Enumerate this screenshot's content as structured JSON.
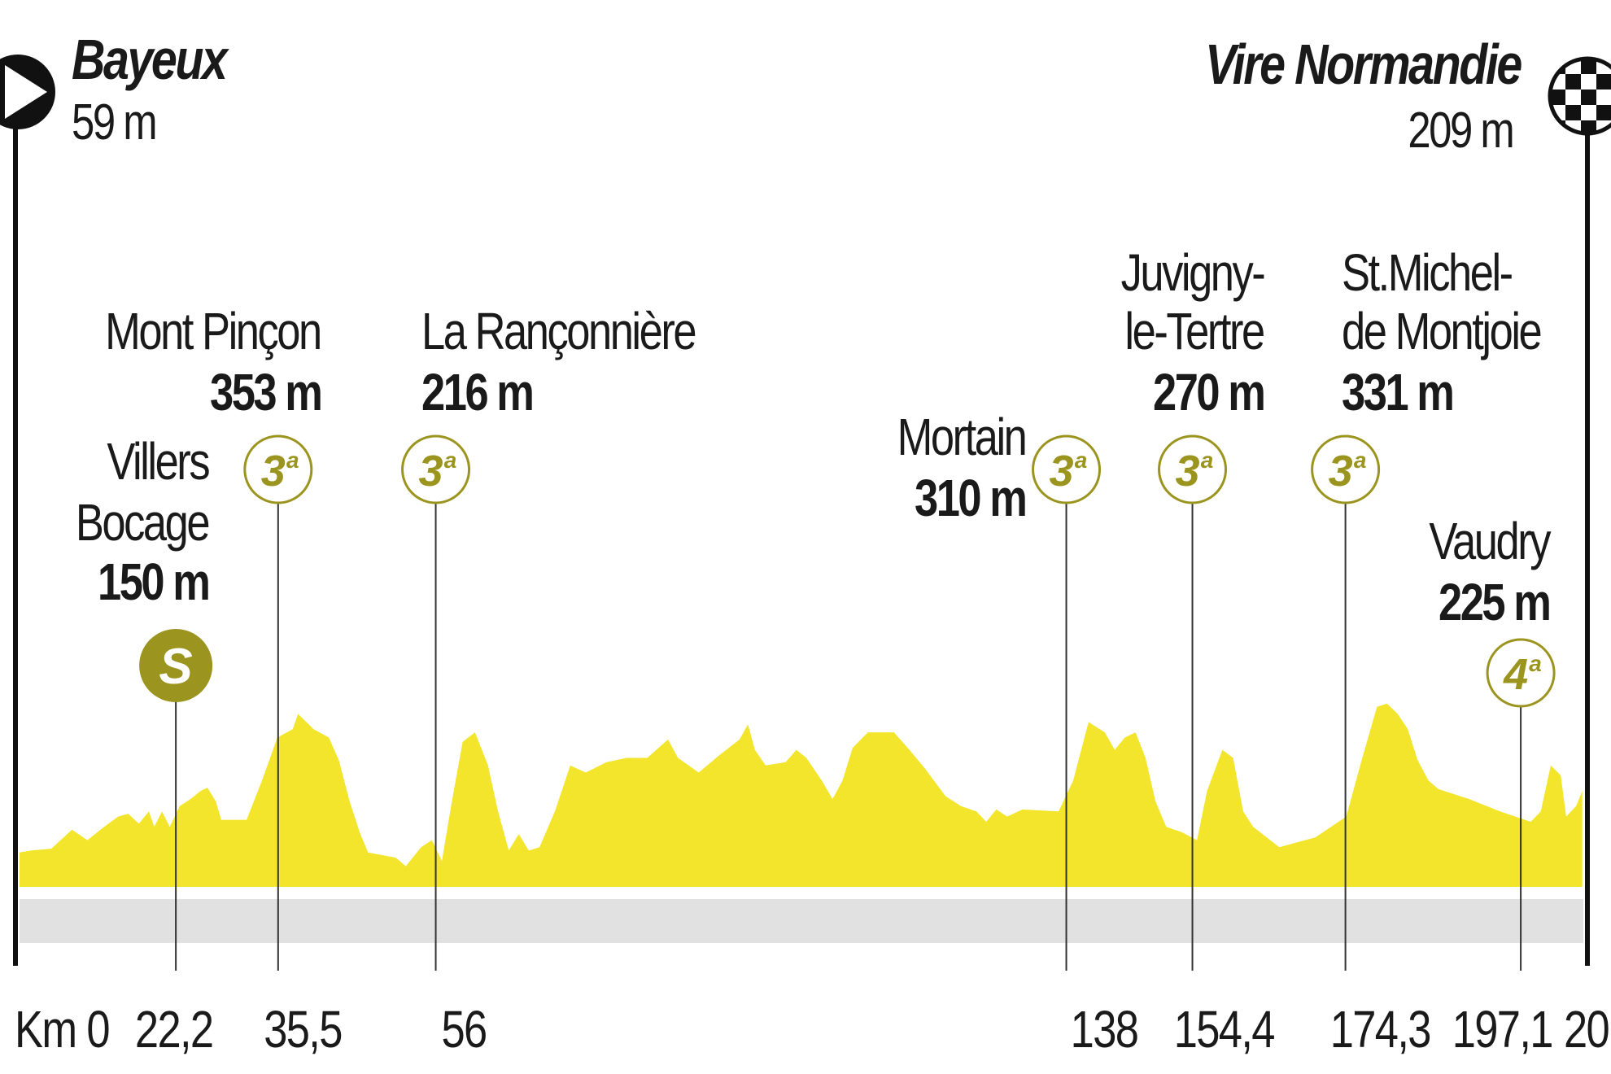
{
  "start": {
    "name": "Bayeux",
    "altitude": "59 m",
    "icon": "start-flag-icon"
  },
  "finish": {
    "name": "Vire Normandie",
    "altitude": "209 m",
    "icon": "checkered-flag-icon"
  },
  "climbs": [
    {
      "name": "Mont Pinçon",
      "altitude": "353 m",
      "category": "3",
      "sup": "a",
      "km": 35.5,
      "km_label": "35,5"
    },
    {
      "name": "La Rançonnière",
      "altitude": "216 m",
      "category": "3",
      "sup": "a",
      "km": 56,
      "km_label": "56"
    },
    {
      "name": "Mortain",
      "altitude": "310 m",
      "category": "3",
      "sup": "a",
      "km": 138,
      "km_label": "138"
    },
    {
      "name_line1": "Juvigny-",
      "name_line2": "le-Tertre",
      "altitude": "270 m",
      "category": "3",
      "sup": "a",
      "km": 154.4,
      "km_label": "154,4"
    },
    {
      "name_line1": "St.Michel-",
      "name_line2": "de Montjoie",
      "altitude": "331 m",
      "category": "3",
      "sup": "a",
      "km": 174.3,
      "km_label": "174,3"
    },
    {
      "name": "Vaudry",
      "altitude": "225 m",
      "category": "4",
      "sup": "a",
      "km": 197.1,
      "km_label": "197,1"
    }
  ],
  "sprint": {
    "name_line1": "Villers",
    "name_line2": "Bocage",
    "altitude": "150 m",
    "symbol": "S",
    "km": 22.2,
    "km_label": "22,2"
  },
  "km_axis": {
    "start_label": "Km 0",
    "end_label_partial": "20"
  },
  "colors": {
    "profile": "#f3e52b",
    "marker": "#9b951f",
    "band": "#e1e1e1"
  },
  "chart_data": {
    "type": "area",
    "xlabel": "Km",
    "ylabel": "",
    "x_unit": "km",
    "y_unit": "m",
    "grid": false,
    "points": [
      [
        0,
        59
      ],
      [
        3.3,
        63
      ],
      [
        6,
        67
      ],
      [
        8.7,
        107
      ],
      [
        10.7,
        85
      ],
      [
        12.7,
        111
      ],
      [
        14.7,
        135
      ],
      [
        16,
        141
      ],
      [
        17.4,
        120
      ],
      [
        18.7,
        146
      ],
      [
        19.4,
        113
      ],
      [
        20.4,
        146
      ],
      [
        21.4,
        113
      ],
      [
        22.7,
        157
      ],
      [
        24.1,
        172
      ],
      [
        25.4,
        189
      ],
      [
        26.3,
        196
      ],
      [
        27.4,
        167
      ],
      [
        28.1,
        128
      ],
      [
        31.4,
        128
      ],
      [
        33.4,
        211
      ],
      [
        35.4,
        302
      ],
      [
        37.4,
        320
      ],
      [
        38.1,
        352
      ],
      [
        40.1,
        320
      ],
      [
        42.1,
        302
      ],
      [
        43.4,
        254
      ],
      [
        44.8,
        167
      ],
      [
        46.1,
        102
      ],
      [
        47.2,
        59
      ],
      [
        50.8,
        48
      ],
      [
        52.1,
        30
      ],
      [
        54.1,
        70
      ],
      [
        55.5,
        85
      ],
      [
        56.8,
        41
      ],
      [
        58.1,
        167
      ],
      [
        59.5,
        293
      ],
      [
        61.1,
        313
      ],
      [
        62.8,
        243
      ],
      [
        64.1,
        146
      ],
      [
        65.5,
        63
      ],
      [
        66.8,
        98
      ],
      [
        68.1,
        63
      ],
      [
        69.5,
        70
      ],
      [
        71.5,
        146
      ],
      [
        73.5,
        243
      ],
      [
        75.5,
        228
      ],
      [
        78.2,
        250
      ],
      [
        80.8,
        259
      ],
      [
        83.5,
        259
      ],
      [
        86.2,
        298
      ],
      [
        87.5,
        259
      ],
      [
        90.2,
        228
      ],
      [
        92.9,
        265
      ],
      [
        95.5,
        298
      ],
      [
        96.6,
        330
      ],
      [
        97.5,
        276
      ],
      [
        98.9,
        243
      ],
      [
        101.5,
        250
      ],
      [
        102.9,
        276
      ],
      [
        104.2,
        259
      ],
      [
        106.2,
        211
      ],
      [
        107.6,
        172
      ],
      [
        108.9,
        211
      ],
      [
        110.2,
        280
      ],
      [
        112.2,
        313
      ],
      [
        115.6,
        313
      ],
      [
        117.6,
        276
      ],
      [
        119.6,
        237
      ],
      [
        122.3,
        178
      ],
      [
        124.3,
        157
      ],
      [
        126.3,
        146
      ],
      [
        127.6,
        124
      ],
      [
        128.9,
        150
      ],
      [
        130.3,
        135
      ],
      [
        132.3,
        150
      ],
      [
        137,
        146
      ],
      [
        138.9,
        211
      ],
      [
        140.9,
        335
      ],
      [
        143,
        313
      ],
      [
        144.3,
        276
      ],
      [
        145.6,
        302
      ],
      [
        147,
        313
      ],
      [
        148.3,
        259
      ],
      [
        149.6,
        167
      ],
      [
        151,
        113
      ],
      [
        153,
        102
      ],
      [
        155,
        85
      ],
      [
        156.3,
        189
      ],
      [
        158.3,
        276
      ],
      [
        159.7,
        259
      ],
      [
        161,
        146
      ],
      [
        162.3,
        113
      ],
      [
        165.7,
        70
      ],
      [
        170.4,
        91
      ],
      [
        174.4,
        135
      ],
      [
        176.4,
        254
      ],
      [
        178.4,
        367
      ],
      [
        179.7,
        374
      ],
      [
        181.1,
        352
      ],
      [
        182.4,
        320
      ],
      [
        183.7,
        254
      ],
      [
        185.1,
        211
      ],
      [
        186.4,
        193
      ],
      [
        190.4,
        172
      ],
      [
        194.4,
        146
      ],
      [
        198.4,
        124
      ],
      [
        199.7,
        146
      ],
      [
        201,
        243
      ],
      [
        202.3,
        222
      ],
      [
        203,
        135
      ],
      [
        204.3,
        157
      ],
      [
        205.1,
        189
      ]
    ]
  }
}
